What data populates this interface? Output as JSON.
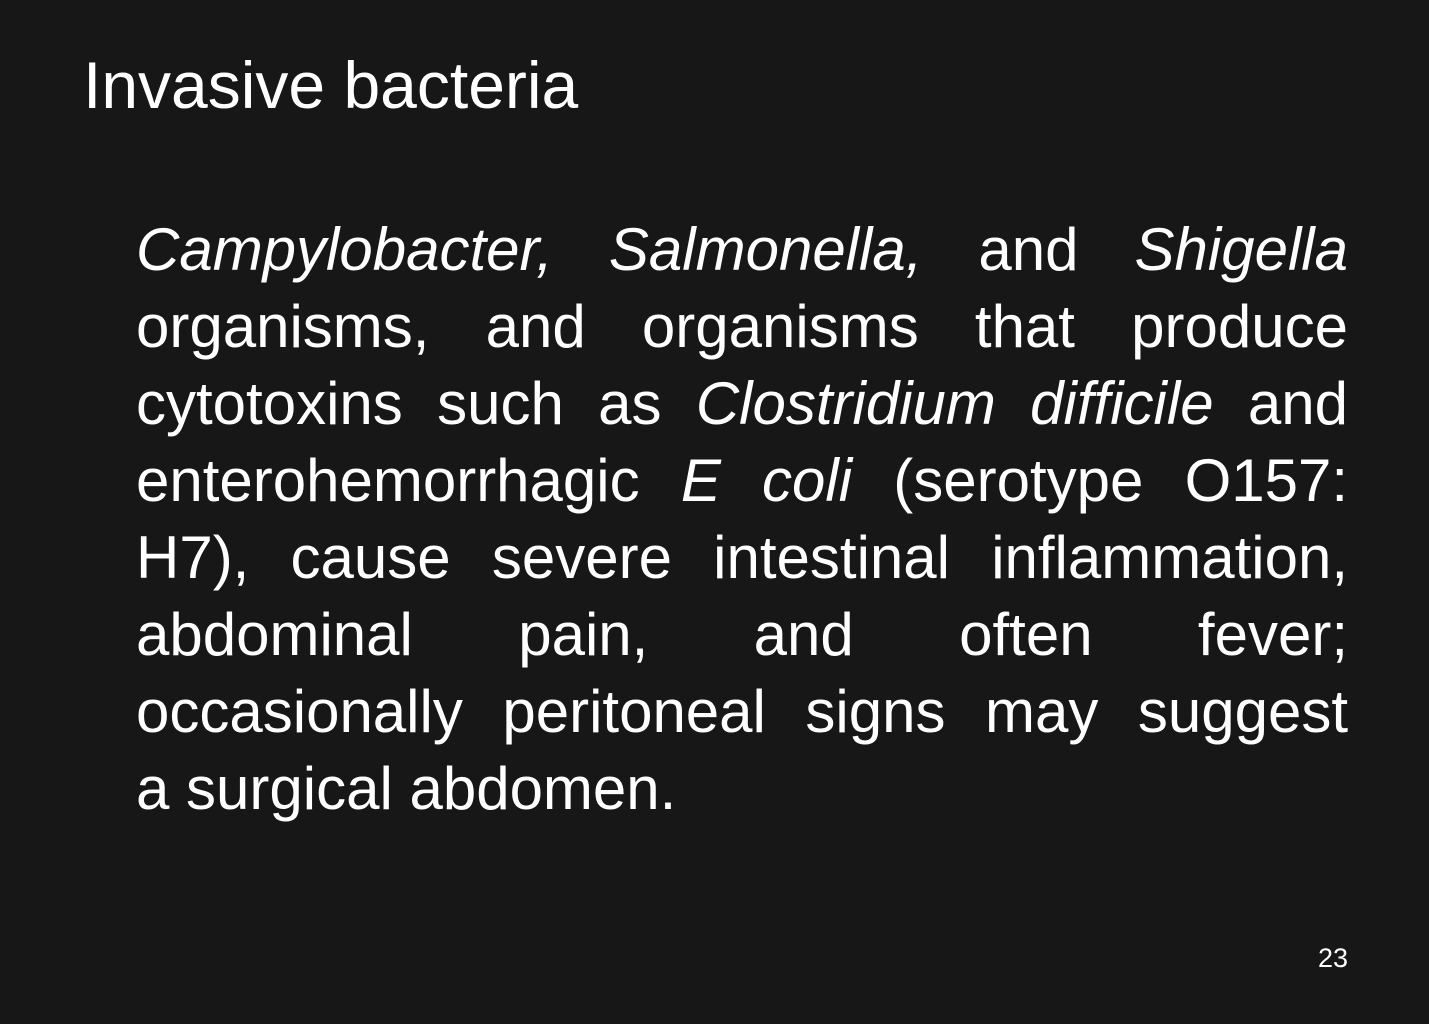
{
  "slide": {
    "title": "Invasive bacteria",
    "page_number": "23",
    "paragraph": [
      [
        {
          "text": "Campylobacter,",
          "italic": true
        },
        {
          "text": "Salmonella,",
          "italic": true
        },
        {
          "text": "and",
          "italic": false
        },
        {
          "text": "Shigella",
          "italic": true
        }
      ],
      [
        {
          "text": "organisms, and organisms that produce",
          "italic": false
        }
      ],
      [
        {
          "text": "cytotoxins such as",
          "italic": false
        },
        {
          "text": "Clostridium difficile",
          "italic": true
        },
        {
          "text": "and",
          "italic": false
        }
      ],
      [
        {
          "text": "enterohemorrhagic",
          "italic": false
        },
        {
          "text": "E coli",
          "italic": true
        },
        {
          "text": "(serotype O157:",
          "italic": false
        }
      ],
      [
        {
          "text": "H7), cause severe intestinal inflammation,",
          "italic": false
        }
      ],
      [
        {
          "text": "abdominal pain, and often fever;",
          "italic": false
        }
      ],
      [
        {
          "text": "occasionally peritoneal signs may suggest",
          "italic": false
        }
      ],
      [
        {
          "text": "a surgical abdomen.",
          "italic": false
        }
      ]
    ]
  }
}
